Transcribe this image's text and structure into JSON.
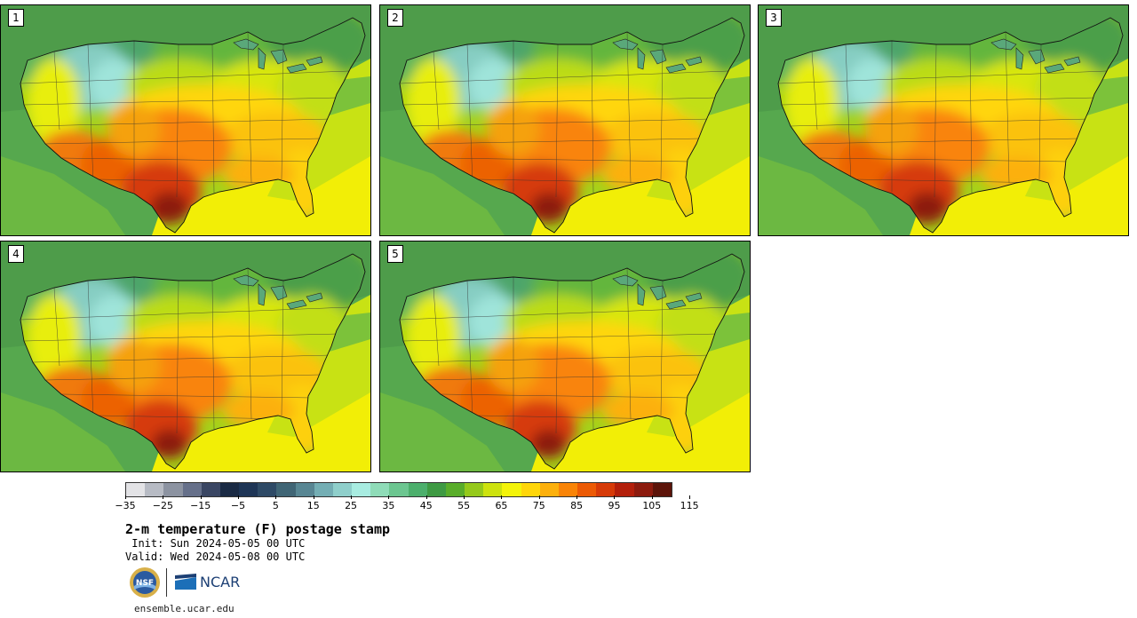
{
  "panels": [
    {
      "label": "1",
      "heat": 1.0
    },
    {
      "label": "2",
      "heat": 0.95
    },
    {
      "label": "3",
      "heat": 1.0
    },
    {
      "label": "4",
      "heat": 0.92
    },
    {
      "label": "5",
      "heat": 0.9
    }
  ],
  "colorbar": {
    "colors": [
      "#e3e3e6",
      "#b7bbc4",
      "#8c93a1",
      "#66708a",
      "#3a4663",
      "#1a2a44",
      "#1e3556",
      "#2e4a66",
      "#406575",
      "#588693",
      "#74aeb4",
      "#8fcfcb",
      "#a8ece1",
      "#8fdcb8",
      "#6cc690",
      "#4caf6c",
      "#3e9a43",
      "#59ad2a",
      "#95c91b",
      "#cde20e",
      "#f4f40a",
      "#ffd60a",
      "#fcb00c",
      "#f98407",
      "#ec5a05",
      "#d63a08",
      "#b31f0b",
      "#8c1b0e",
      "#5c140a"
    ],
    "tick_labels": [
      "−35",
      "−25",
      "−15",
      "−5",
      "5",
      "15",
      "25",
      "35",
      "45",
      "55",
      "65",
      "75",
      "85",
      "95",
      "105",
      "115"
    ]
  },
  "title": "2-m temperature (F) postage stamp",
  "init": " Init: Sun 2024-05-05 00 UTC",
  "valid": "Valid: Wed 2024-05-08 00 UTC",
  "logos": {
    "nsf": "NSF",
    "ncar": "NCAR"
  },
  "website": "ensemble.ucar.edu"
}
